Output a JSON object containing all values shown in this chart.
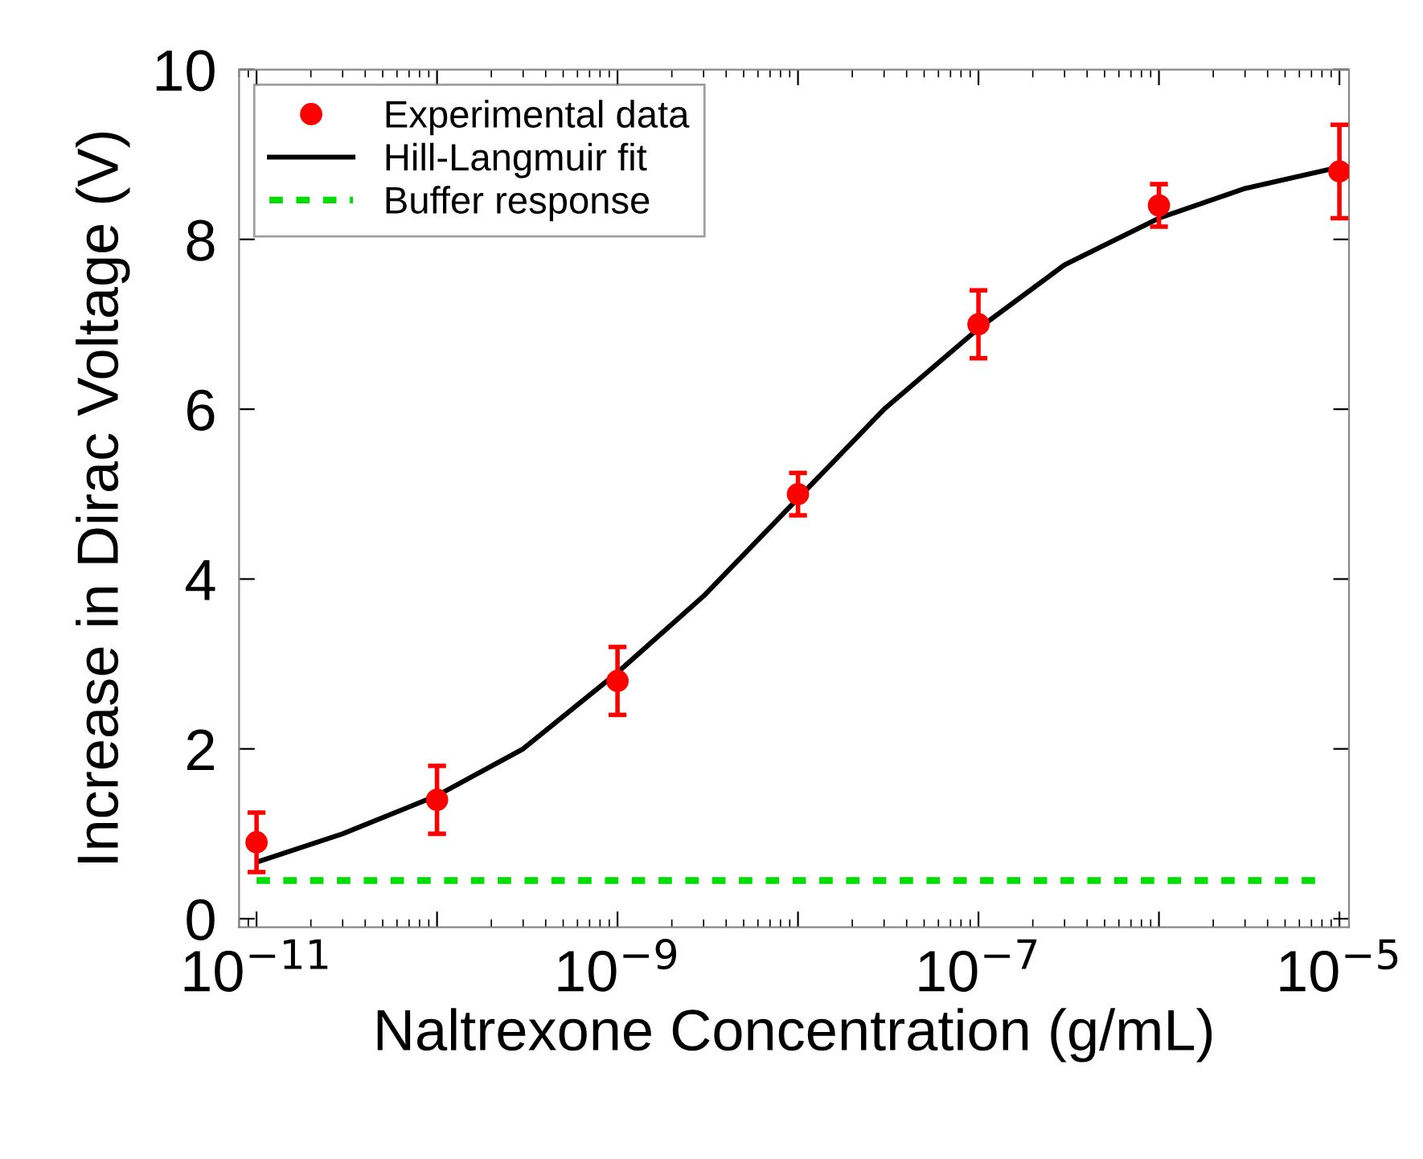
{
  "chart_data": {
    "type": "scatter",
    "xlabel": "Naltrexone Concentration (g/mL)",
    "ylabel": "Increase in Dirac Voltage (V)",
    "log": "x",
    "xlim": [
      8e-12,
      1.13e-05
    ],
    "ylim": [
      -0.1,
      10
    ],
    "xticks": [
      {
        "value": 1e-11,
        "label": "10$^{−11}$"
      },
      {
        "value": 1e-10,
        "label": null
      },
      {
        "value": 1e-09,
        "label": "10$^{−9}$"
      },
      {
        "value": 1e-08,
        "label": null
      },
      {
        "value": 1e-07,
        "label": "10$^{−7}$"
      },
      {
        "value": 1e-06,
        "label": null
      },
      {
        "value": 1e-05,
        "label": "10$^{−5}$"
      }
    ],
    "yticks": [
      0,
      2,
      4,
      6,
      8,
      10
    ],
    "grid": false,
    "legend": "top left",
    "series": [
      {
        "name": "Experimental data",
        "color": "#ff0000",
        "marker": "circle",
        "x": [
          1e-11,
          1e-10,
          1e-09,
          1e-08,
          1e-07,
          1e-06,
          1e-05
        ],
        "values": [
          0.9,
          1.4,
          2.8,
          5.0,
          7.0,
          8.4,
          8.8
        ],
        "errors": [
          0.35,
          0.4,
          0.4,
          0.25,
          0.4,
          0.25,
          0.55
        ]
      },
      {
        "name": "Hill-Langmuir fit",
        "type": "line",
        "color": "#000000",
        "line_style": "solid",
        "x": [
          1.05e-11,
          3e-11,
          1e-10,
          3e-10,
          1e-09,
          3e-09,
          1e-08,
          3e-08,
          1e-07,
          3e-07,
          1e-06,
          3e-06,
          1e-05
        ],
        "values": [
          0.68,
          1.0,
          1.45,
          2.0,
          2.9,
          3.8,
          4.95,
          6.0,
          6.95,
          7.7,
          8.25,
          8.6,
          8.85
        ]
      },
      {
        "name": "Buffer response",
        "type": "line",
        "color": "#00dd00",
        "line_style": "dashed",
        "x": [
          1e-11,
          8e-06
        ],
        "values": [
          0.45,
          0.45
        ]
      }
    ]
  }
}
